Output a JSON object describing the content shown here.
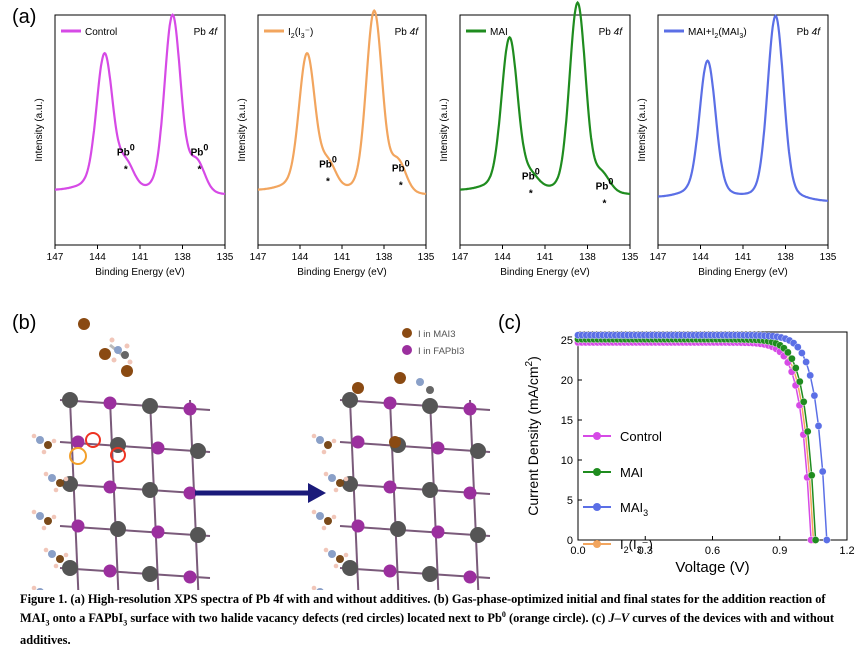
{
  "figure": {
    "caption_bold": "Figure 1.",
    "caption_parts": [
      "(a) High-resolution XPS spectra of Pb 4f with and without additives. (b) Gas-phase-optimized initial and final states for the addition reaction of MAI",
      "3",
      " onto a FAPbI",
      "3",
      " surface with two halide vacancy defects (red circles) located next to Pb",
      "0",
      " (orange circle). (c) ",
      "J–V",
      " curves of the devices with and without additives."
    ]
  },
  "panel_a": {
    "label": "(a)",
    "ylabel": "Intensity (a.u.)",
    "xlabel": "Binding Energy (eV)",
    "ticks": [
      "147",
      "144",
      "141",
      "138",
      "135"
    ],
    "title": "Pb 4f",
    "defect_label": "Pb0",
    "spectra": [
      {
        "legend": "Control",
        "color": "#d64ae6",
        "pb0": true
      },
      {
        "legend": "I2(I3-)",
        "color": "#f2a55e",
        "pb0": true
      },
      {
        "legend": "MAI",
        "color": "#1f8c1f",
        "pb0": true
      },
      {
        "legend": "MAI+I2(MAI3)",
        "color": "#5b6fe6",
        "pb0": false
      }
    ]
  },
  "panel_b": {
    "label": "(b)",
    "legend": [
      "I in MAI3",
      "I in FAPbI3"
    ],
    "legend_colors": [
      "#8a4a12",
      "#9b2f9e"
    ]
  },
  "chart_data": {
    "type": "line",
    "label": "(c)",
    "xlabel": "Voltage (V)",
    "ylabel": "Current Density (mA/cm2)",
    "xlim": [
      0.0,
      1.2
    ],
    "ylim": [
      0,
      25
    ],
    "xticks": [
      "0.0",
      "0.3",
      "0.6",
      "0.9",
      "1.2"
    ],
    "yticks": [
      "0",
      "5",
      "10",
      "15",
      "20",
      "25"
    ],
    "series": [
      {
        "name": "Control",
        "color": "#d64ae6",
        "jsc": 24.7,
        "voc": 1.04
      },
      {
        "name": "MAI",
        "color": "#1f8c1f",
        "jsc": 25.1,
        "voc": 1.06
      },
      {
        "name": "MAI3",
        "color": "#5b6fe6",
        "jsc": 25.6,
        "voc": 1.11
      },
      {
        "name": "I2(I3-)",
        "color": "#f2a55e",
        "jsc": 24.9,
        "voc": 1.05
      }
    ]
  }
}
